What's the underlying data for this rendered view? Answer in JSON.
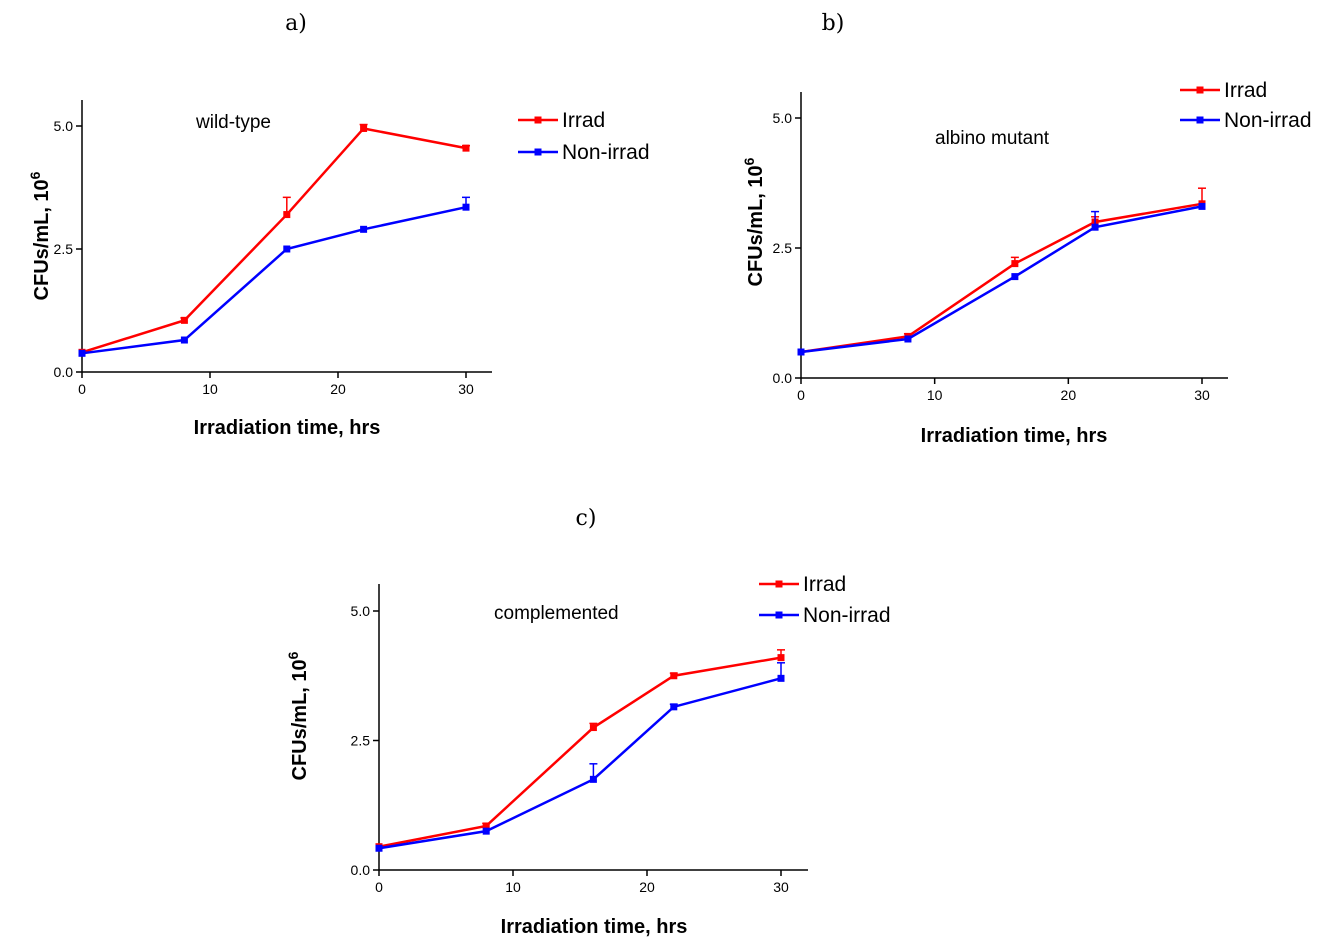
{
  "chart_data": [
    {
      "type": "line",
      "panel_label": "a)",
      "annotation": "wild-type",
      "xlabel": "Irradiation time, hrs",
      "ylabel_main": "CFUs/mL, 10",
      "ylabel_sup": "6",
      "xlim": [
        0,
        30
      ],
      "ylim": [
        0,
        5.0
      ],
      "xticks": [
        "0",
        "10",
        "20",
        "30"
      ],
      "yticks": [
        "0.0",
        "2.5",
        "5.0"
      ],
      "legend_position": "top-right",
      "series": [
        {
          "name": "Irrad",
          "color": "#ff0000",
          "x": [
            0,
            8,
            16,
            22,
            30
          ],
          "y": [
            0.4,
            1.05,
            3.2,
            4.95,
            4.55
          ],
          "err": [
            0.02,
            0.05,
            0.35,
            0.08,
            0.05
          ]
        },
        {
          "name": "Non-irrad",
          "color": "#0000ff",
          "x": [
            0,
            8,
            16,
            22,
            30
          ],
          "y": [
            0.38,
            0.65,
            2.5,
            2.9,
            3.35
          ],
          "err": [
            0.02,
            0.03,
            0.03,
            0.03,
            0.2
          ]
        }
      ]
    },
    {
      "type": "line",
      "panel_label": "b)",
      "annotation": "albino mutant",
      "xlabel": "Irradiation time, hrs",
      "ylabel_main": "CFUs/mL, 10",
      "ylabel_sup": "6",
      "xlim": [
        0,
        30
      ],
      "ylim": [
        0,
        5.0
      ],
      "xticks": [
        "0",
        "10",
        "20",
        "30"
      ],
      "yticks": [
        "0.0",
        "2.5",
        "5.0"
      ],
      "legend_position": "top-right",
      "series": [
        {
          "name": "Irrad",
          "color": "#ff0000",
          "x": [
            0,
            8,
            16,
            22,
            30
          ],
          "y": [
            0.5,
            0.8,
            2.2,
            3.0,
            3.35
          ],
          "err": [
            0.02,
            0.05,
            0.12,
            0.1,
            0.3
          ]
        },
        {
          "name": "Non-irrad",
          "color": "#0000ff",
          "x": [
            0,
            8,
            16,
            22,
            30
          ],
          "y": [
            0.5,
            0.75,
            1.95,
            2.9,
            3.3
          ],
          "err": [
            0.02,
            0.03,
            0.03,
            0.3,
            0.03
          ]
        }
      ]
    },
    {
      "type": "line",
      "panel_label": "c)",
      "annotation": "complemented",
      "xlabel": "Irradiation time, hrs",
      "ylabel_main": "CFUs/mL, 10",
      "ylabel_sup": "6",
      "xlim": [
        0,
        30
      ],
      "ylim": [
        0,
        5.0
      ],
      "xticks": [
        "0",
        "10",
        "20",
        "30"
      ],
      "yticks": [
        "0.0",
        "2.5",
        "5.0"
      ],
      "legend_position": "top-right",
      "series": [
        {
          "name": "Irrad",
          "color": "#ff0000",
          "x": [
            0,
            8,
            16,
            22,
            30
          ],
          "y": [
            0.45,
            0.85,
            2.75,
            3.75,
            4.1
          ],
          "err": [
            0.02,
            0.05,
            0.08,
            0.05,
            0.15
          ]
        },
        {
          "name": "Non-irrad",
          "color": "#0000ff",
          "x": [
            0,
            8,
            16,
            22,
            30
          ],
          "y": [
            0.42,
            0.75,
            1.75,
            3.15,
            3.7
          ],
          "err": [
            0.02,
            0.03,
            0.3,
            0.05,
            0.3
          ]
        }
      ]
    }
  ]
}
